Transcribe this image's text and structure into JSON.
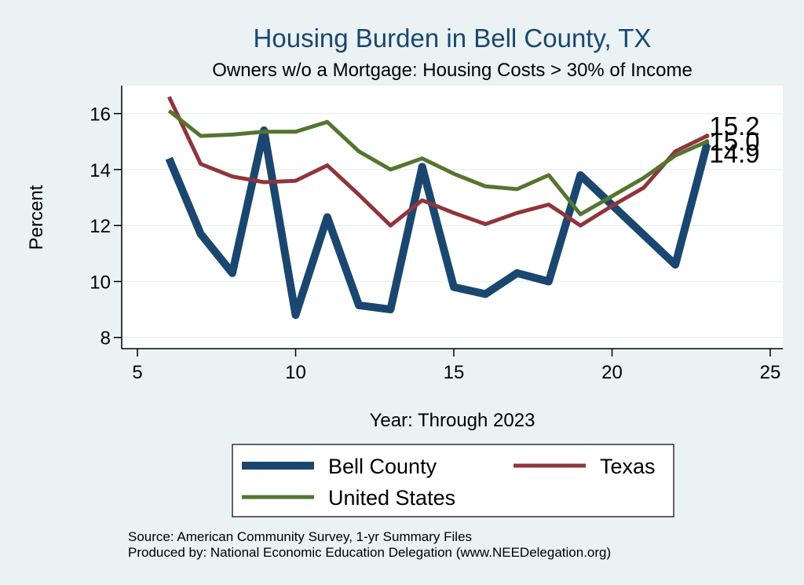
{
  "chart_data": {
    "type": "line",
    "title": "Housing Burden in Bell County, TX",
    "subtitle": "Owners w/o a Mortgage: Housing Costs > 30% of Income",
    "xlabel": "Year: Through 2023",
    "ylabel": "Percent",
    "xlim": [
      5,
      25
    ],
    "ylim": [
      7.6,
      17.0
    ],
    "xticks": [
      5,
      10,
      15,
      20,
      25
    ],
    "yticks": [
      8,
      10,
      12,
      14,
      16
    ],
    "grid": true,
    "legend_position": "bottom",
    "series": [
      {
        "name": "Bell County",
        "color": "#1a476f",
        "x": [
          6,
          7,
          8,
          9,
          10,
          11,
          12,
          13,
          14,
          15,
          16,
          17,
          18,
          19,
          22,
          23
        ],
        "values": [
          14.4,
          11.7,
          10.3,
          15.4,
          8.8,
          12.3,
          9.15,
          9.0,
          14.1,
          9.8,
          9.55,
          10.3,
          10.0,
          13.8,
          10.6,
          14.9
        ]
      },
      {
        "name": "Texas",
        "color": "#90353b",
        "x": [
          6,
          7,
          8,
          9,
          10,
          11,
          12,
          13,
          14,
          15,
          16,
          17,
          18,
          19,
          20,
          21,
          22,
          23
        ],
        "values": [
          16.6,
          14.2,
          13.75,
          13.55,
          13.6,
          14.15,
          13.1,
          12.0,
          12.9,
          12.45,
          12.05,
          12.45,
          12.75,
          12.0,
          12.7,
          13.35,
          14.65,
          15.2
        ]
      },
      {
        "name": "United States",
        "color": "#55752f",
        "x": [
          6,
          7,
          8,
          9,
          10,
          11,
          12,
          13,
          14,
          15,
          16,
          17,
          18,
          19,
          20,
          21,
          22,
          23
        ],
        "values": [
          16.1,
          15.2,
          15.25,
          15.35,
          15.35,
          15.7,
          14.65,
          14.0,
          14.4,
          13.85,
          13.4,
          13.3,
          13.8,
          12.4,
          13.05,
          13.7,
          14.5,
          15.0
        ]
      }
    ],
    "end_labels": [
      {
        "series": "Texas",
        "text": "15.2",
        "value": 15.2
      },
      {
        "series": "United States",
        "text": "15.0",
        "value": 15.0
      },
      {
        "series": "Bell County",
        "text": "14.9",
        "value": 14.9
      }
    ],
    "notes": [
      "Source: American Community Survey, 1-yr Summary Files",
      "Produced by: National Economic Education Delegation (www.NEEDelegation.org)"
    ]
  }
}
